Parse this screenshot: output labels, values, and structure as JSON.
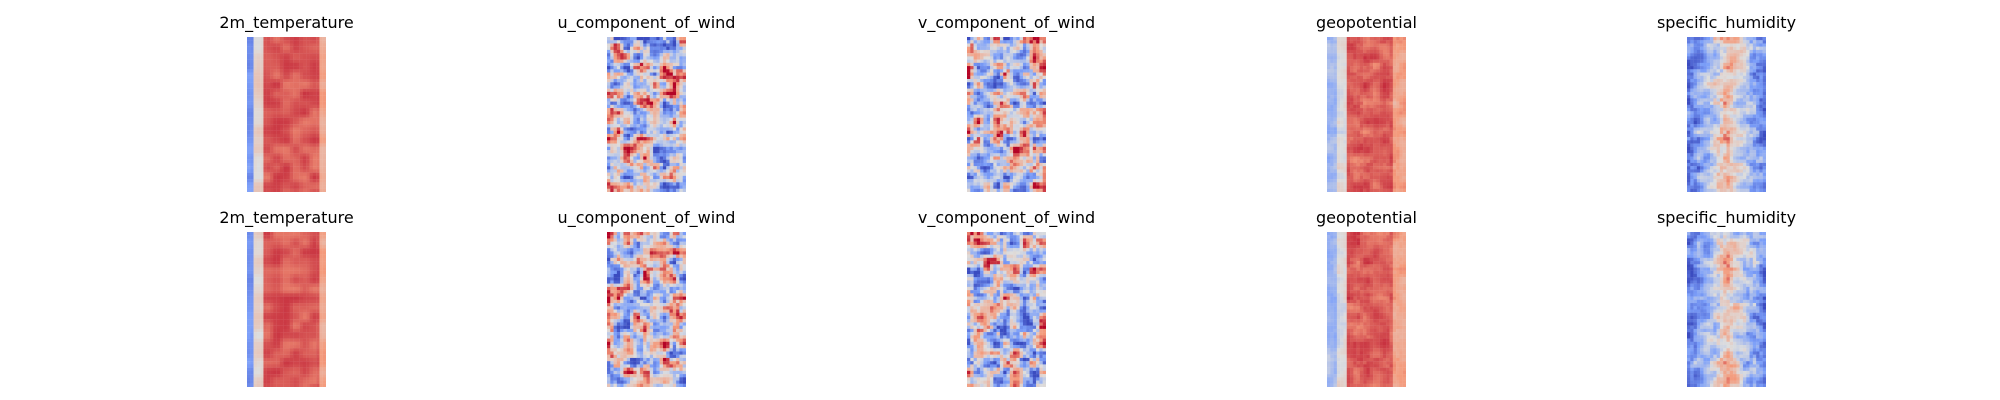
{
  "chart_data": {
    "type": "heatmap",
    "layout": {
      "rows": 2,
      "cols": 5
    },
    "colormap": "coolwarm",
    "colormap_colors": [
      "#3b4cc0",
      "#dddddd",
      "#b40426"
    ],
    "panels": [
      {
        "row": 0,
        "col": 0,
        "title": "2m_temperature",
        "pattern": "temperature"
      },
      {
        "row": 0,
        "col": 1,
        "title": "u_component_of_wind",
        "pattern": "wind"
      },
      {
        "row": 0,
        "col": 2,
        "title": "v_component_of_wind",
        "pattern": "wind"
      },
      {
        "row": 0,
        "col": 3,
        "title": "geopotential",
        "pattern": "geopotential"
      },
      {
        "row": 0,
        "col": 4,
        "title": "specific_humidity",
        "pattern": "humidity"
      },
      {
        "row": 1,
        "col": 0,
        "title": "2m_temperature",
        "pattern": "temperature"
      },
      {
        "row": 1,
        "col": 1,
        "title": "u_component_of_wind",
        "pattern": "wind"
      },
      {
        "row": 1,
        "col": 2,
        "title": "v_component_of_wind",
        "pattern": "wind"
      },
      {
        "row": 1,
        "col": 3,
        "title": "geopotential",
        "pattern": "geopotential"
      },
      {
        "row": 1,
        "col": 4,
        "title": "specific_humidity",
        "pattern": "humidity"
      }
    ]
  }
}
